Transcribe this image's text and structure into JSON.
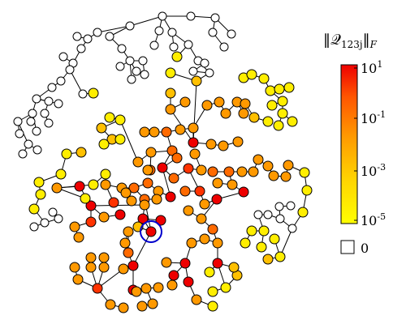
{
  "legend": {
    "title_prefix": "‖𝒬",
    "title_sub": "123j",
    "title_suffix": "‖",
    "title_norm_sub": "F",
    "colormap": [
      "#ffff00",
      "#ffd000",
      "#ff9900",
      "#ff5500",
      "#ee0000"
    ],
    "ticks": [
      {
        "base": "10",
        "exp": "1"
      },
      {
        "base": "10",
        "exp": "-1"
      },
      {
        "base": "10",
        "exp": "-3"
      },
      {
        "base": "10",
        "exp": "-5"
      }
    ],
    "zero_label": "0",
    "zero_color": "#ffffff"
  },
  "graph": {
    "highlight_color": "#0000cc",
    "node_colors": {
      "white": "#ffffff",
      "yellow": "#ffee00",
      "light_orange": "#ffc000",
      "orange": "#ff9900",
      "dark_orange": "#ff6a00",
      "red_orange": "#ff3300",
      "red": "#ee0000"
    }
  }
}
